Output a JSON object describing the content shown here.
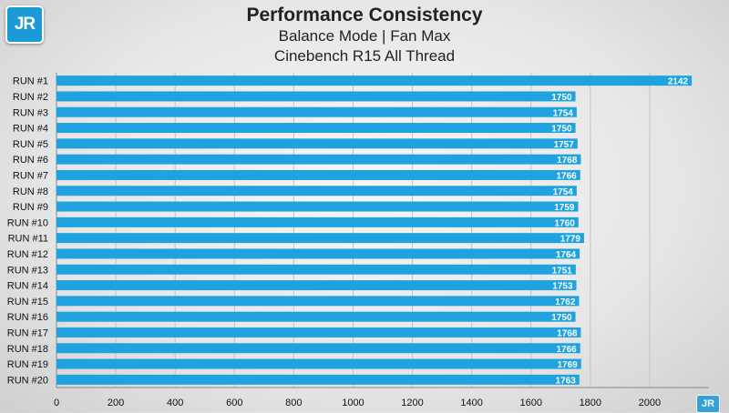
{
  "logo": {
    "text": "JR",
    "small_text": "JR"
  },
  "chart_data": {
    "type": "bar",
    "orientation": "horizontal",
    "title": "Performance Consistency",
    "subtitles": [
      "Balance Mode | Fan Max",
      "Cinebench R15 All Thread"
    ],
    "categories": [
      "RUN #1",
      "RUN #2",
      "RUN #3",
      "RUN #4",
      "RUN #5",
      "RUN #6",
      "RUN #7",
      "RUN #8",
      "RUN #9",
      "RUN #10",
      "RUN #11",
      "RUN #12",
      "RUN #13",
      "RUN #14",
      "RUN #15",
      "RUN #16",
      "RUN #17",
      "RUN #18",
      "RUN #19",
      "RUN #20"
    ],
    "values": [
      2142,
      1750,
      1754,
      1750,
      1757,
      1768,
      1766,
      1754,
      1759,
      1760,
      1779,
      1764,
      1751,
      1753,
      1762,
      1750,
      1768,
      1766,
      1769,
      1763
    ],
    "xlim": [
      0,
      2200
    ],
    "xticks": [
      "0",
      "200",
      "400",
      "600",
      "800",
      "1000",
      "1200",
      "1400",
      "1600",
      "1800",
      "2000"
    ],
    "grid": true,
    "legend": "none",
    "bar_color": "#1fa3e0",
    "xlabel": "",
    "ylabel": ""
  }
}
